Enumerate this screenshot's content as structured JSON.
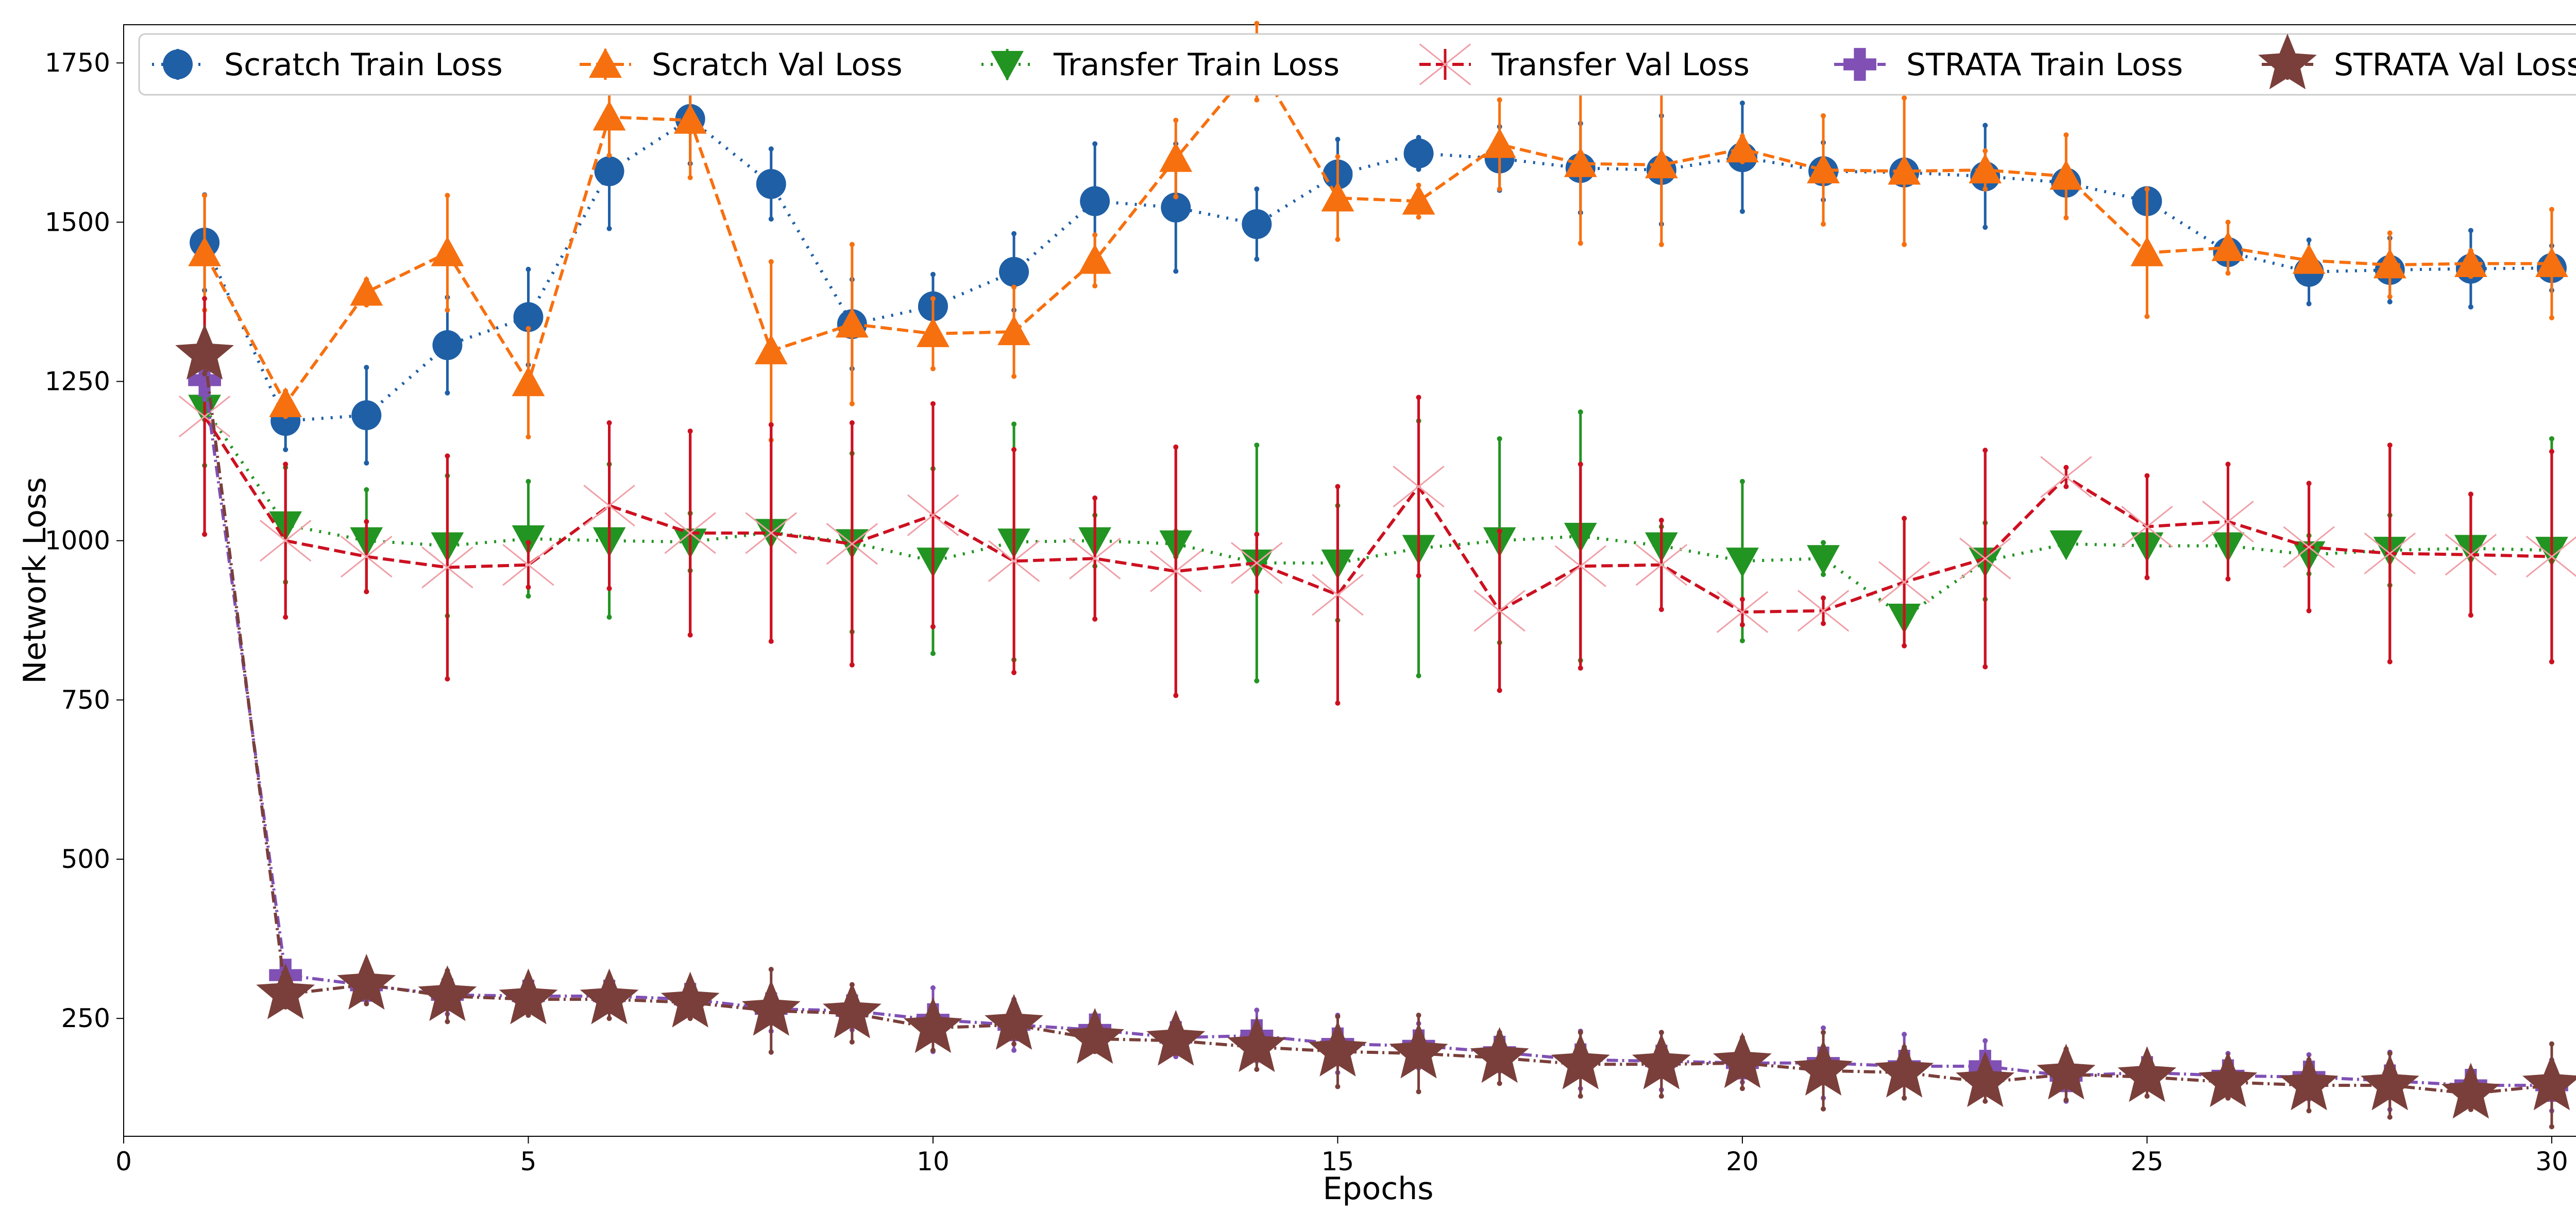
{
  "chart_data": {
    "type": "line",
    "xlabel": "Epochs",
    "ylabel": "Network Loss",
    "xlim": [
      0,
      31
    ],
    "ylim": [
      65,
      1810
    ],
    "x_ticks": [
      0,
      5,
      10,
      15,
      20,
      25,
      30
    ],
    "y_ticks": [
      250,
      500,
      750,
      1000,
      1250,
      1500,
      1750
    ],
    "grid": false,
    "legend_position": "top",
    "x": [
      1,
      2,
      3,
      4,
      5,
      6,
      7,
      8,
      9,
      10,
      11,
      12,
      13,
      14,
      15,
      16,
      17,
      18,
      19,
      20,
      21,
      22,
      23,
      24,
      25,
      26,
      27,
      28,
      29,
      30
    ],
    "series": [
      {
        "name": "Scratch Train Loss",
        "color": "#1f5fa6",
        "marker": "circle",
        "linestyle": "dotted",
        "values": [
          1468,
          1188,
          1197,
          1307,
          1351,
          1580,
          1662,
          1560,
          1340,
          1368,
          1422,
          1533,
          1523,
          1497,
          1575,
          1608,
          1600,
          1585,
          1582,
          1602,
          1580,
          1578,
          1572,
          1562,
          1533,
          1453,
          1422,
          1425,
          1427,
          1428
        ],
        "errors": [
          75,
          45,
          75,
          75,
          75,
          90,
          70,
          55,
          70,
          50,
          60,
          90,
          100,
          55,
          55,
          25,
          50,
          70,
          85,
          85,
          45,
          15,
          80,
          15,
          15,
          15,
          50,
          50,
          60,
          35
        ]
      },
      {
        "name": "Scratch Val Loss",
        "color": "#f7700f",
        "marker": "triangle-up",
        "linestyle": "dashed",
        "values": [
          1452,
          1215,
          1390,
          1452,
          1248,
          1665,
          1660,
          1298,
          1340,
          1325,
          1328,
          1440,
          1600,
          1752,
          1538,
          1533,
          1622,
          1592,
          1590,
          1615,
          1582,
          1580,
          1582,
          1572,
          1452,
          1460,
          1440,
          1433,
          1435,
          1435
        ],
        "errors": [
          90,
          20,
          20,
          90,
          85,
          60,
          90,
          140,
          125,
          55,
          70,
          40,
          60,
          60,
          65,
          25,
          70,
          125,
          125,
          20,
          85,
          115,
          30,
          65,
          100,
          40,
          15,
          50,
          20,
          85
        ]
      },
      {
        "name": "Transfer Train Loss",
        "color": "#229422",
        "marker": "triangle-down",
        "linestyle": "dotted",
        "values": [
          1208,
          1025,
          1000,
          992,
          1003,
          1000,
          998,
          1013,
          997,
          968,
          998,
          1000,
          995,
          965,
          965,
          988,
          1000,
          1007,
          992,
          968,
          972,
          880,
          968,
          995,
          992,
          992,
          978,
          985,
          988,
          985
        ],
        "errors": [
          90,
          90,
          80,
          110,
          90,
          120,
          45,
          15,
          140,
          145,
          185,
          40,
          20,
          185,
          90,
          200,
          160,
          195,
          30,
          125,
          25,
          15,
          60,
          15,
          15,
          15,
          30,
          55,
          15,
          175
        ]
      },
      {
        "name": "Transfer Val Loss",
        "color": "#cc1020",
        "marker": "thin-diamond-x",
        "linestyle": "dashed",
        "values": [
          1195,
          1000,
          975,
          958,
          962,
          1055,
          1012,
          1012,
          995,
          1040,
          968,
          972,
          952,
          965,
          915,
          1085,
          890,
          960,
          962,
          888,
          890,
          935,
          972,
          1100,
          1022,
          1030,
          990,
          980,
          978,
          975
        ],
        "errors": [
          185,
          120,
          55,
          175,
          35,
          130,
          160,
          170,
          190,
          175,
          175,
          95,
          195,
          45,
          170,
          140,
          125,
          160,
          70,
          20,
          20,
          100,
          170,
          15,
          80,
          90,
          100,
          170,
          95,
          165
        ]
      },
      {
        "name": "STRATA Train Loss",
        "color": "#8050b5",
        "marker": "plus",
        "linestyle": "dashdot",
        "values": [
          1252,
          318,
          302,
          287,
          285,
          285,
          280,
          265,
          262,
          248,
          240,
          232,
          220,
          223,
          210,
          207,
          197,
          185,
          183,
          180,
          180,
          175,
          175,
          160,
          165,
          160,
          158,
          152,
          145,
          145
        ],
        "errors": [
          30,
          20,
          25,
          30,
          30,
          25,
          20,
          35,
          30,
          50,
          40,
          25,
          30,
          40,
          45,
          35,
          30,
          45,
          45,
          30,
          55,
          50,
          40,
          40,
          25,
          35,
          35,
          45,
          20,
          40
        ]
      },
      {
        "name": "STRATA Val Loss",
        "color": "#7a3f3a",
        "marker": "star",
        "linestyle": "dashdot",
        "values": [
          1292,
          288,
          303,
          285,
          280,
          280,
          275,
          262,
          258,
          235,
          240,
          218,
          215,
          205,
          198,
          195,
          188,
          178,
          178,
          180,
          168,
          165,
          150,
          162,
          158,
          150,
          145,
          145,
          132,
          145
        ],
        "errors": [
          30,
          20,
          30,
          40,
          25,
          30,
          25,
          65,
          45,
          35,
          30,
          20,
          20,
          35,
          55,
          60,
          40,
          50,
          50,
          40,
          60,
          40,
          30,
          40,
          30,
          25,
          40,
          50,
          25,
          65
        ]
      }
    ]
  }
}
